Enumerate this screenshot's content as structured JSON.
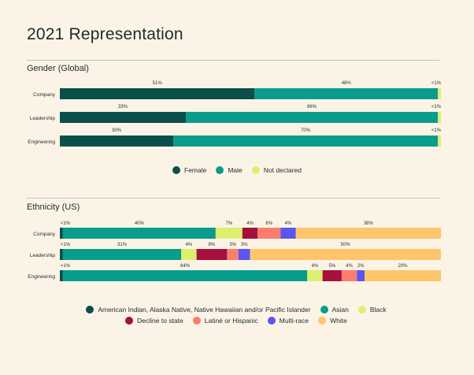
{
  "title": "2021 Representation",
  "chart_data": [
    {
      "type": "bar",
      "orientation": "horizontal-stacked",
      "title": "Gender (Global)",
      "categories": [
        "Company",
        "Leadership",
        "Engineering"
      ],
      "series": [
        {
          "name": "Female",
          "color": "#0b4f4a",
          "values": [
            51,
            33,
            30
          ],
          "labels": [
            "51%",
            "33%",
            "30%"
          ]
        },
        {
          "name": "Male",
          "color": "#0a9c8a",
          "values": [
            48,
            66,
            70
          ],
          "labels": [
            "48%",
            "66%",
            "70%"
          ]
        },
        {
          "name": "Not declared",
          "color": "#dcf06e",
          "values": [
            0.8,
            0.8,
            0.8
          ],
          "labels": [
            "<1%",
            "<1%",
            "<1%"
          ]
        }
      ],
      "legend": "bottom"
    },
    {
      "type": "bar",
      "orientation": "horizontal-stacked",
      "title": "Ethnicity (US)",
      "categories": [
        "Company",
        "Leadership",
        "Engineering"
      ],
      "series": [
        {
          "name": "American Indian, Alaska Native, Native Hawaiian and/or Pacific Islander",
          "color": "#0b4f4a",
          "values": [
            0.8,
            0.8,
            0.8
          ],
          "labels": [
            "<1%",
            "<1%",
            "<1%"
          ]
        },
        {
          "name": "Asian",
          "color": "#0a9c8a",
          "values": [
            40,
            31,
            64
          ],
          "labels": [
            "40%",
            "31%",
            "64%"
          ]
        },
        {
          "name": "Black",
          "color": "#dcf06e",
          "values": [
            7,
            4,
            4
          ],
          "labels": [
            "7%",
            "4%",
            "4%"
          ]
        },
        {
          "name": "Decline to state",
          "color": "#a5103f",
          "values": [
            4,
            8,
            5
          ],
          "labels": [
            "4%",
            "8%",
            "5%"
          ]
        },
        {
          "name": "Latiné or Hispanic",
          "color": "#fa7d6e",
          "values": [
            6,
            3,
            4
          ],
          "labels": [
            "6%",
            "3%",
            "4%"
          ]
        },
        {
          "name": "Multi-race",
          "color": "#5a56f0",
          "values": [
            4,
            3,
            2
          ],
          "labels": [
            "4%",
            "3%",
            "2%"
          ]
        },
        {
          "name": "White",
          "color": "#fec56b",
          "values": [
            38,
            50,
            20
          ],
          "labels": [
            "38%",
            "50%",
            "20%"
          ]
        }
      ],
      "legend": "bottom"
    }
  ]
}
